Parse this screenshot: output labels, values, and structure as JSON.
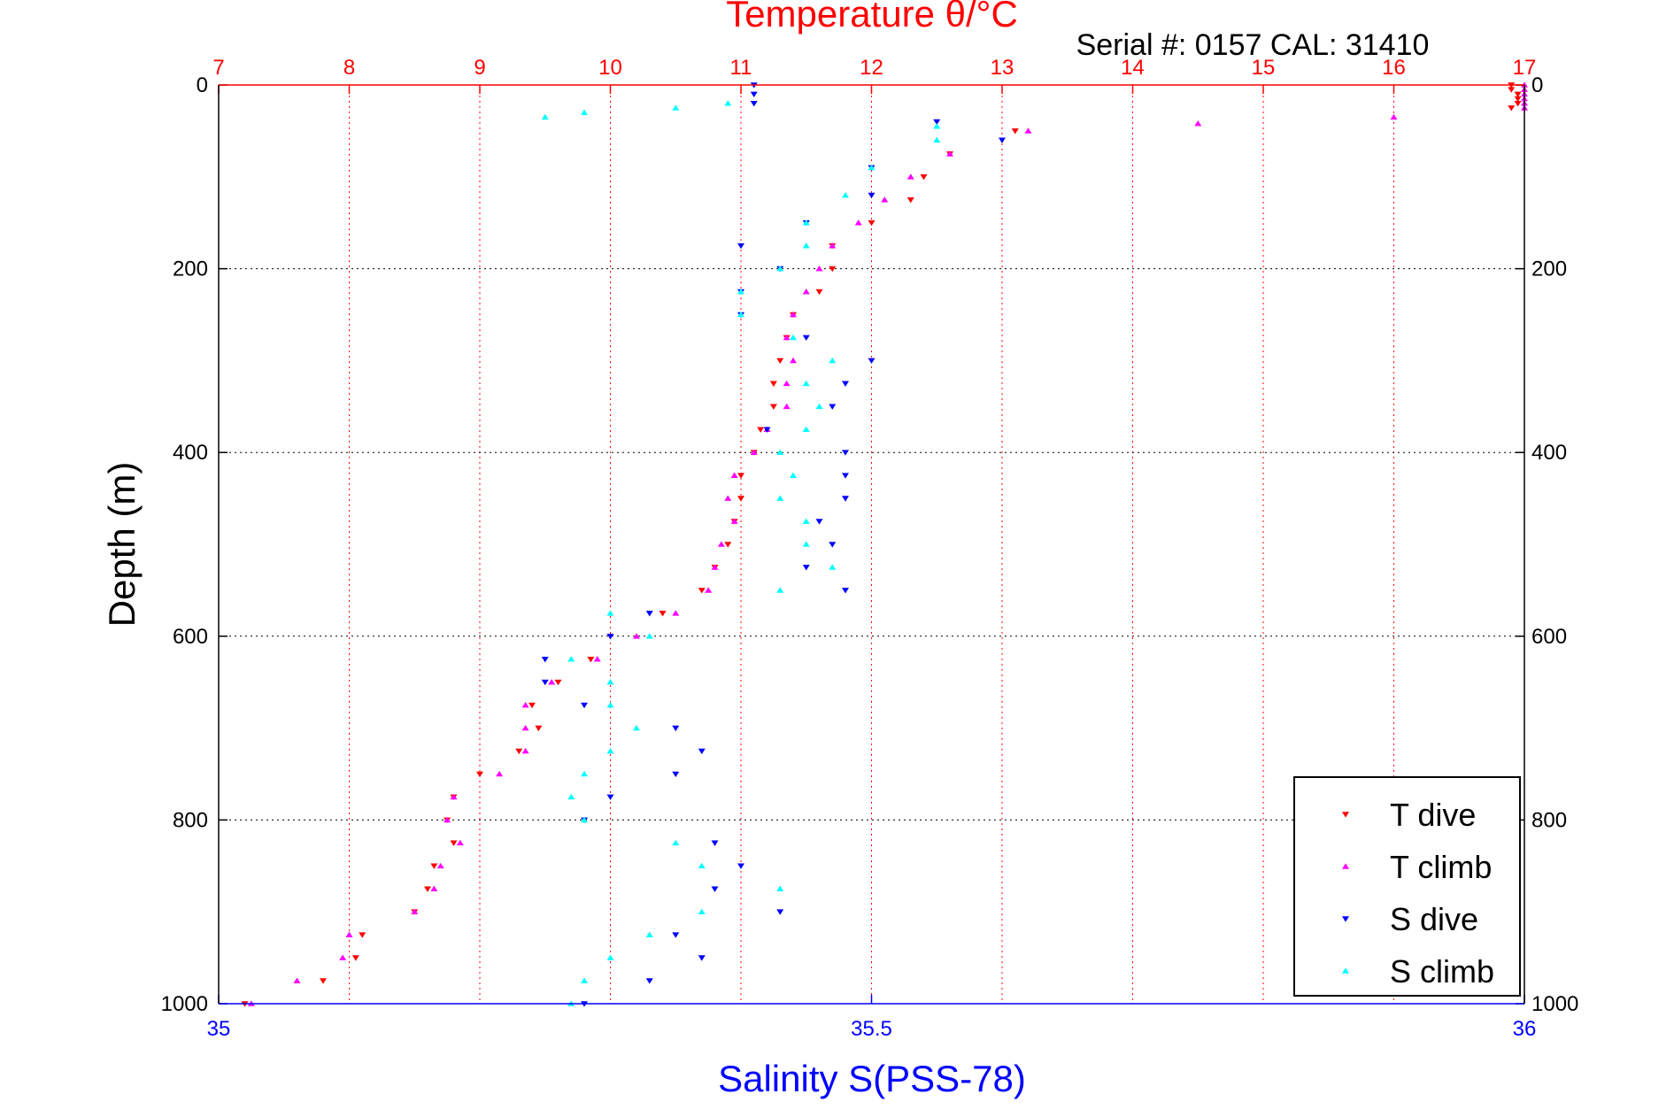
{
  "chart_data": {
    "type": "scatter",
    "title": "Temperature θ/°C",
    "subtitle": "Serial #: 0157  CAL: 31410",
    "ylabel": "Depth (m)",
    "xlabel_bottom": "Salinity S(PSS-78)",
    "ylim": [
      0,
      1000
    ],
    "y_reversed": true,
    "x_top": {
      "label": "Temperature θ/°C",
      "lim": [
        7,
        17
      ],
      "ticks": [
        7,
        8,
        9,
        10,
        11,
        12,
        13,
        14,
        15,
        16,
        17
      ]
    },
    "x_bottom": {
      "label": "Salinity S(PSS-78)",
      "lim": [
        35,
        36
      ],
      "ticks": [
        35,
        35.5,
        36
      ]
    },
    "y_ticks": [
      0,
      200,
      400,
      600,
      800,
      1000
    ],
    "grid": true,
    "legend_position": "bottom-right",
    "colors": {
      "temperature_axis": "#ff0000",
      "salinity_axis": "#0000ff",
      "title_black": "#000000"
    },
    "series": [
      {
        "name": "T dive",
        "axis": "temperature",
        "marker": "triangle-down",
        "color": "#ff0000",
        "points": [
          [
            16.9,
            0
          ],
          [
            16.9,
            5
          ],
          [
            16.95,
            10
          ],
          [
            16.95,
            15
          ],
          [
            16.95,
            20
          ],
          [
            16.9,
            25
          ],
          [
            13.1,
            50
          ],
          [
            12.6,
            75
          ],
          [
            12.4,
            100
          ],
          [
            12.3,
            125
          ],
          [
            12.0,
            150
          ],
          [
            11.7,
            175
          ],
          [
            11.7,
            200
          ],
          [
            11.6,
            225
          ],
          [
            11.4,
            250
          ],
          [
            11.35,
            275
          ],
          [
            11.3,
            300
          ],
          [
            11.25,
            325
          ],
          [
            11.25,
            350
          ],
          [
            11.15,
            375
          ],
          [
            11.1,
            400
          ],
          [
            11.0,
            425
          ],
          [
            11.0,
            450
          ],
          [
            10.95,
            475
          ],
          [
            10.9,
            500
          ],
          [
            10.8,
            525
          ],
          [
            10.7,
            550
          ],
          [
            10.4,
            575
          ],
          [
            10.0,
            600
          ],
          [
            9.85,
            625
          ],
          [
            9.6,
            650
          ],
          [
            9.4,
            675
          ],
          [
            9.45,
            700
          ],
          [
            9.3,
            725
          ],
          [
            9.0,
            750
          ],
          [
            8.8,
            775
          ],
          [
            8.75,
            800
          ],
          [
            8.8,
            825
          ],
          [
            8.65,
            850
          ],
          [
            8.6,
            875
          ],
          [
            8.5,
            900
          ],
          [
            8.1,
            925
          ],
          [
            8.05,
            950
          ],
          [
            7.8,
            975
          ],
          [
            7.2,
            1000
          ]
        ]
      },
      {
        "name": "T climb",
        "axis": "temperature",
        "marker": "triangle-up",
        "color": "#ff00ff",
        "points": [
          [
            17.0,
            0
          ],
          [
            17.0,
            5
          ],
          [
            17.0,
            10
          ],
          [
            17.0,
            15
          ],
          [
            17.0,
            20
          ],
          [
            17.0,
            25
          ],
          [
            16.0,
            35
          ],
          [
            14.5,
            42
          ],
          [
            13.2,
            50
          ],
          [
            12.6,
            75
          ],
          [
            12.3,
            100
          ],
          [
            12.1,
            125
          ],
          [
            11.9,
            150
          ],
          [
            11.7,
            175
          ],
          [
            11.6,
            200
          ],
          [
            11.5,
            225
          ],
          [
            11.4,
            250
          ],
          [
            11.35,
            275
          ],
          [
            11.4,
            300
          ],
          [
            11.35,
            325
          ],
          [
            11.35,
            350
          ],
          [
            11.2,
            375
          ],
          [
            11.1,
            400
          ],
          [
            10.95,
            425
          ],
          [
            10.9,
            450
          ],
          [
            10.95,
            475
          ],
          [
            10.85,
            500
          ],
          [
            10.8,
            525
          ],
          [
            10.75,
            550
          ],
          [
            10.5,
            575
          ],
          [
            10.2,
            600
          ],
          [
            9.9,
            625
          ],
          [
            9.55,
            650
          ],
          [
            9.35,
            675
          ],
          [
            9.35,
            700
          ],
          [
            9.35,
            725
          ],
          [
            9.15,
            750
          ],
          [
            8.8,
            775
          ],
          [
            8.75,
            800
          ],
          [
            8.85,
            825
          ],
          [
            8.7,
            850
          ],
          [
            8.65,
            875
          ],
          [
            8.5,
            900
          ],
          [
            8.0,
            925
          ],
          [
            7.95,
            950
          ],
          [
            7.6,
            975
          ],
          [
            7.25,
            1000
          ]
        ]
      },
      {
        "name": "S dive",
        "axis": "salinity",
        "marker": "triangle-down",
        "color": "#0000ff",
        "points": [
          [
            35.41,
            0
          ],
          [
            35.41,
            10
          ],
          [
            35.41,
            20
          ],
          [
            35.55,
            40
          ],
          [
            35.6,
            60
          ],
          [
            35.5,
            90
          ],
          [
            35.5,
            120
          ],
          [
            35.45,
            150
          ],
          [
            35.4,
            175
          ],
          [
            35.43,
            200
          ],
          [
            35.4,
            225
          ],
          [
            35.4,
            250
          ],
          [
            35.45,
            275
          ],
          [
            35.5,
            300
          ],
          [
            35.48,
            325
          ],
          [
            35.47,
            350
          ],
          [
            35.42,
            375
          ],
          [
            35.48,
            400
          ],
          [
            35.48,
            425
          ],
          [
            35.48,
            450
          ],
          [
            35.46,
            475
          ],
          [
            35.47,
            500
          ],
          [
            35.45,
            525
          ],
          [
            35.48,
            550
          ],
          [
            35.33,
            575
          ],
          [
            35.3,
            600
          ],
          [
            35.25,
            625
          ],
          [
            35.25,
            650
          ],
          [
            35.28,
            675
          ],
          [
            35.35,
            700
          ],
          [
            35.37,
            725
          ],
          [
            35.35,
            750
          ],
          [
            35.3,
            775
          ],
          [
            35.28,
            800
          ],
          [
            35.38,
            825
          ],
          [
            35.4,
            850
          ],
          [
            35.38,
            875
          ],
          [
            35.43,
            900
          ],
          [
            35.35,
            925
          ],
          [
            35.37,
            950
          ],
          [
            35.33,
            975
          ],
          [
            35.28,
            1000
          ]
        ]
      },
      {
        "name": "S climb",
        "axis": "salinity",
        "marker": "triangle-up",
        "color": "#00ffff",
        "points": [
          [
            35.39,
            20
          ],
          [
            35.35,
            25
          ],
          [
            35.28,
            30
          ],
          [
            35.25,
            35
          ],
          [
            35.55,
            45
          ],
          [
            35.55,
            60
          ],
          [
            35.5,
            90
          ],
          [
            35.48,
            120
          ],
          [
            35.45,
            150
          ],
          [
            35.45,
            175
          ],
          [
            35.43,
            200
          ],
          [
            35.4,
            225
          ],
          [
            35.4,
            250
          ],
          [
            35.44,
            275
          ],
          [
            35.47,
            300
          ],
          [
            35.45,
            325
          ],
          [
            35.46,
            350
          ],
          [
            35.45,
            375
          ],
          [
            35.43,
            400
          ],
          [
            35.44,
            425
          ],
          [
            35.43,
            450
          ],
          [
            35.45,
            475
          ],
          [
            35.45,
            500
          ],
          [
            35.47,
            525
          ],
          [
            35.43,
            550
          ],
          [
            35.3,
            575
          ],
          [
            35.33,
            600
          ],
          [
            35.27,
            625
          ],
          [
            35.3,
            650
          ],
          [
            35.3,
            675
          ],
          [
            35.32,
            700
          ],
          [
            35.3,
            725
          ],
          [
            35.28,
            750
          ],
          [
            35.27,
            775
          ],
          [
            35.28,
            800
          ],
          [
            35.35,
            825
          ],
          [
            35.37,
            850
          ],
          [
            35.43,
            875
          ],
          [
            35.37,
            900
          ],
          [
            35.33,
            925
          ],
          [
            35.3,
            950
          ],
          [
            35.28,
            975
          ],
          [
            35.27,
            1000
          ]
        ]
      }
    ]
  }
}
